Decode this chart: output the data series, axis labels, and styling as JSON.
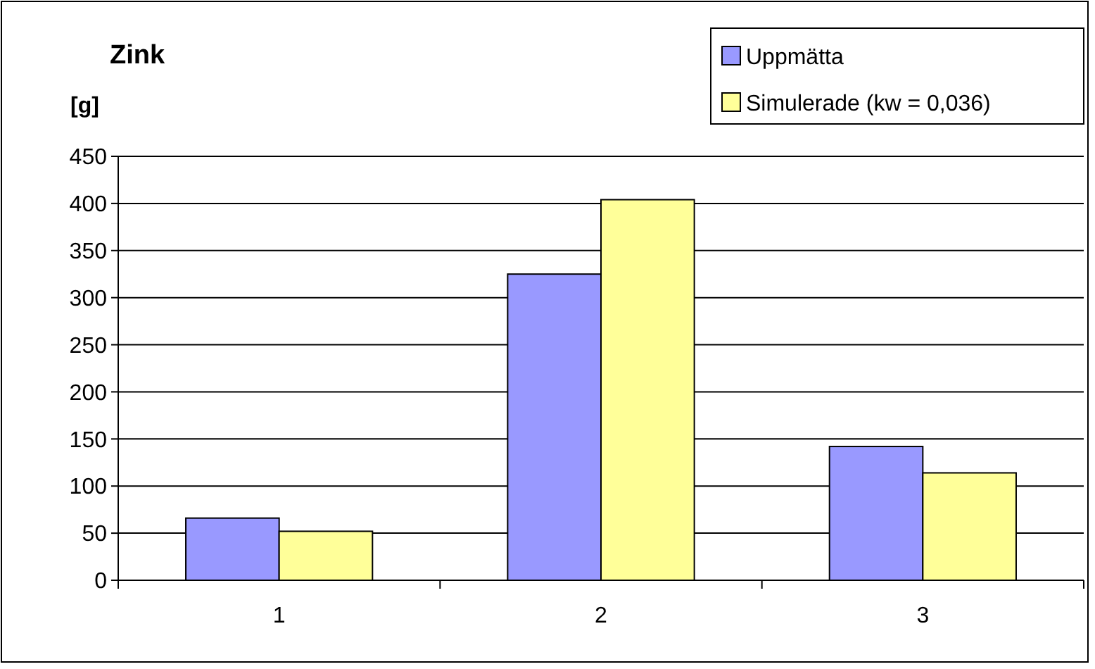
{
  "chart_data": {
    "type": "bar",
    "title": "Zink",
    "ylabel": "[g]",
    "categories": [
      "1",
      "2",
      "3"
    ],
    "series": [
      {
        "name": "Uppmätta",
        "color": "#9999ff",
        "values": [
          66,
          325,
          142
        ]
      },
      {
        "name": "Simulerade (kw = 0,036)",
        "color": "#ffff99",
        "values": [
          52,
          404,
          114
        ]
      }
    ],
    "ylim": [
      0,
      450
    ],
    "yticks": [
      0,
      50,
      100,
      150,
      200,
      250,
      300,
      350,
      400,
      450
    ],
    "grid": "y",
    "legend": "top right"
  }
}
